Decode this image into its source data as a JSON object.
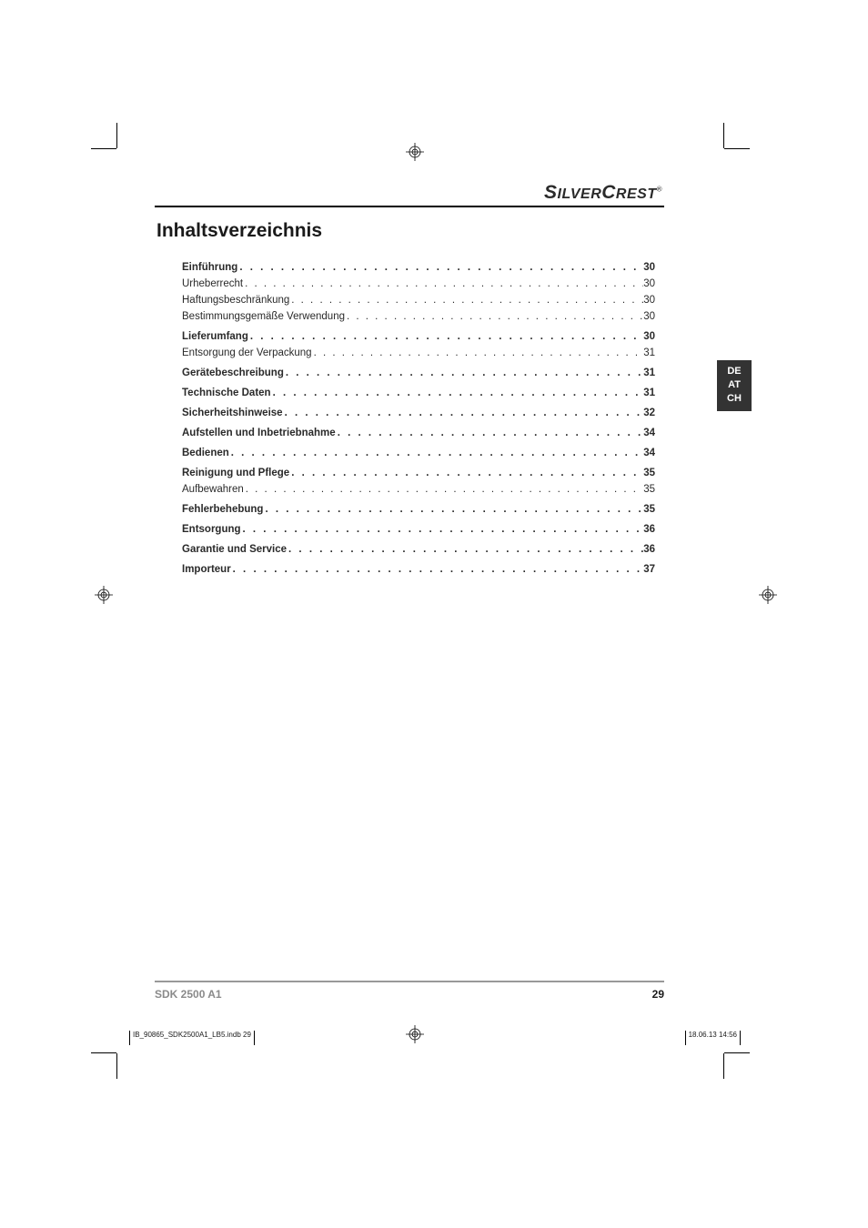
{
  "brand": "SILVERCREST",
  "title": "Inhaltsverzeichnis",
  "lang_tab": [
    "DE",
    "AT",
    "CH"
  ],
  "colors": {
    "text": "#1a1a1a",
    "muted": "#8a8a8a",
    "tab_bg": "#333333",
    "tab_fg": "#ffffff",
    "rule_main": "#000000",
    "rule_footer": "#999999",
    "background": "#ffffff"
  },
  "typography": {
    "title_fontsize": 21,
    "brand_fontsize": 21,
    "toc_fontsize": 11.5,
    "footer_fontsize": 12,
    "imprint_fontsize": 8,
    "langtab_fontsize": 11
  },
  "toc": [
    {
      "label": "Einführung",
      "page": "30",
      "bold": true
    },
    {
      "label": "Urheberrecht",
      "page": "30",
      "bold": false
    },
    {
      "label": "Haftungsbeschränkung",
      "page": "30",
      "bold": false
    },
    {
      "label": "Bestimmungsgemäße Verwendung",
      "page": "30",
      "bold": false
    },
    {
      "label": "Lieferumfang",
      "page": "30",
      "bold": true
    },
    {
      "label": "Entsorgung der Verpackung",
      "page": "31",
      "bold": false
    },
    {
      "label": "Gerätebeschreibung",
      "page": "31",
      "bold": true
    },
    {
      "label": "Technische Daten",
      "page": "31",
      "bold": true
    },
    {
      "label": "Sicherheitshinweise",
      "page": "32",
      "bold": true
    },
    {
      "label": "Aufstellen und Inbetriebnahme",
      "page": "34",
      "bold": true
    },
    {
      "label": "Bedienen",
      "page": "34",
      "bold": true
    },
    {
      "label": "Reinigung und Pflege",
      "page": "35",
      "bold": true
    },
    {
      "label": "Aufbewahren",
      "page": "35",
      "bold": false
    },
    {
      "label": "Fehlerbehebung",
      "page": "35",
      "bold": true
    },
    {
      "label": "Entsorgung",
      "page": "36",
      "bold": true
    },
    {
      "label": "Garantie und Service",
      "page": "36",
      "bold": true
    },
    {
      "label": "Importeur",
      "page": "37",
      "bold": true
    }
  ],
  "footer": {
    "model": "SDK 2500 A1",
    "page_number": "29"
  },
  "imprint": {
    "file": "IB_90865_SDK2500A1_LB5.indb   29",
    "timestamp": "18.06.13   14:56"
  }
}
